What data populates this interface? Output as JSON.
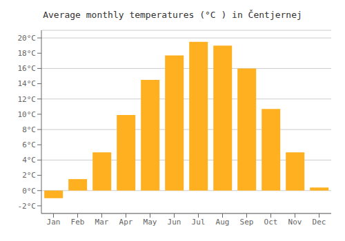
{
  "chart_data": {
    "type": "bar",
    "title": "Average monthly temperatures (°C ) in Čentjernej",
    "categories": [
      "Jan",
      "Feb",
      "Mar",
      "Apr",
      "May",
      "Jun",
      "Jul",
      "Aug",
      "Sep",
      "Oct",
      "Nov",
      "Dec"
    ],
    "values": [
      -1.0,
      1.5,
      5.0,
      9.9,
      14.5,
      17.7,
      19.5,
      19.0,
      16.0,
      10.7,
      5.0,
      0.4
    ],
    "color": "#FFB020",
    "ylim": [
      -3,
      21
    ],
    "yticks": [
      {
        "value": -2,
        "label": "-2°C"
      },
      {
        "value": 0,
        "label": "0°C"
      },
      {
        "value": 2,
        "label": "2°C"
      },
      {
        "value": 4,
        "label": "4°C"
      },
      {
        "value": 6,
        "label": "6°C"
      },
      {
        "value": 8,
        "label": "8°C"
      },
      {
        "value": 10,
        "label": "10°C"
      },
      {
        "value": 12,
        "label": "12°C"
      },
      {
        "value": 14,
        "label": "14°C"
      },
      {
        "value": 16,
        "label": "16°C"
      },
      {
        "value": 18,
        "label": "18°C"
      },
      {
        "value": 20,
        "label": "20°C"
      }
    ],
    "grid": true
  }
}
